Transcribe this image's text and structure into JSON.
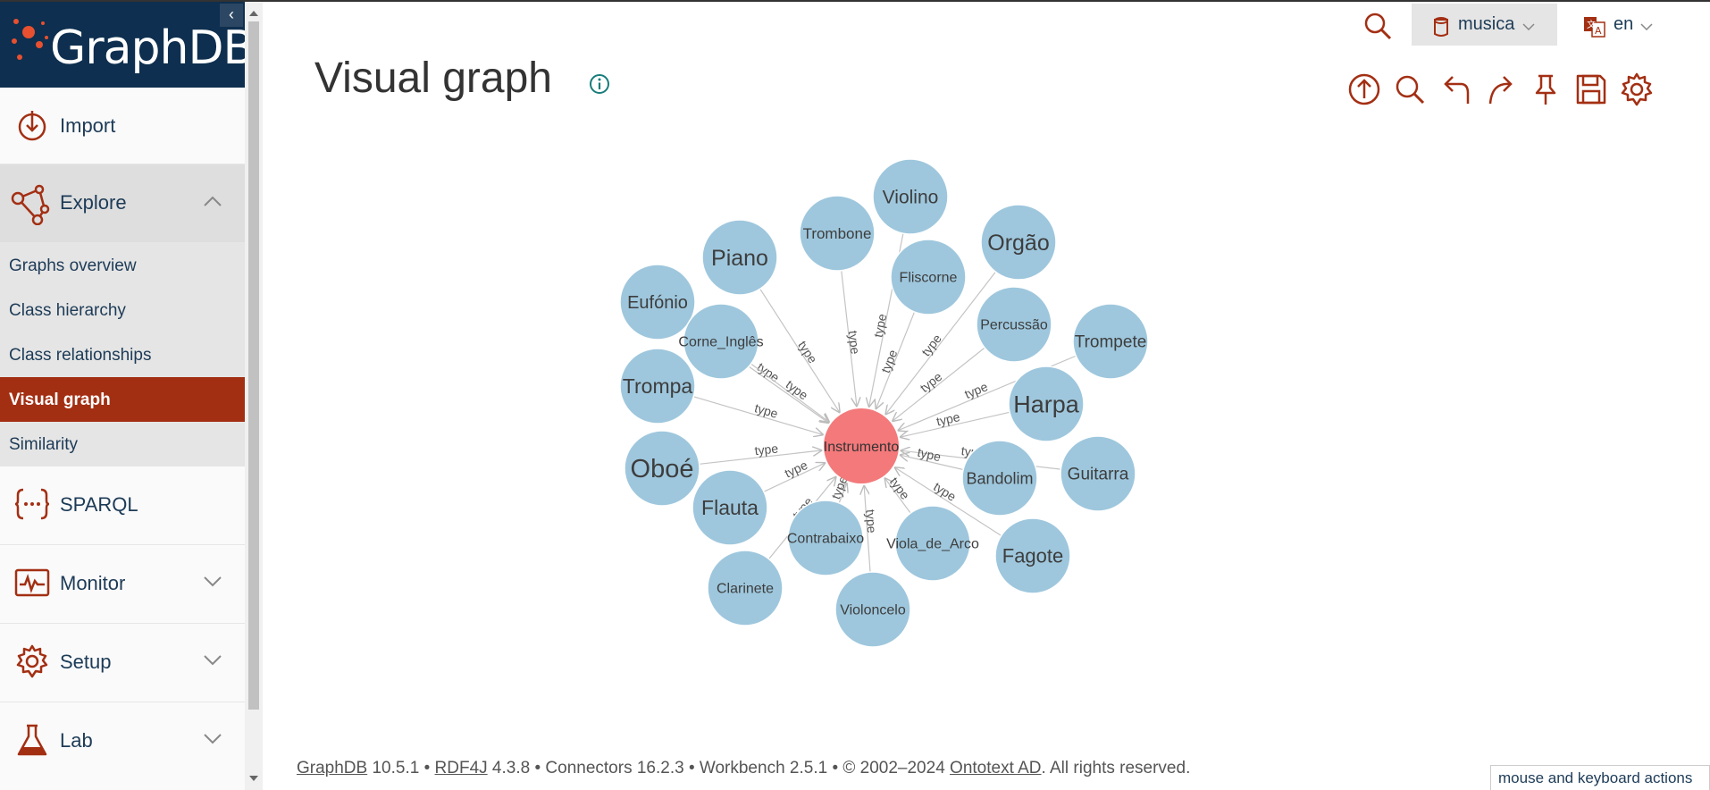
{
  "app": {
    "logo_text": "GraphDB"
  },
  "sidebar": {
    "collapse_glyph": "‹",
    "items": [
      {
        "label": "Import",
        "icon": "import-icon"
      },
      {
        "label": "Explore",
        "icon": "explore-icon",
        "expanded": true
      },
      {
        "label": "SPARQL",
        "icon": "sparql-icon"
      },
      {
        "label": "Monitor",
        "icon": "monitor-icon"
      },
      {
        "label": "Setup",
        "icon": "setup-icon"
      },
      {
        "label": "Lab",
        "icon": "lab-icon"
      }
    ],
    "explore_submenu": [
      {
        "label": "Graphs overview"
      },
      {
        "label": "Class hierarchy"
      },
      {
        "label": "Class relationships"
      },
      {
        "label": "Visual graph",
        "active": true
      },
      {
        "label": "Similarity"
      }
    ]
  },
  "topbar": {
    "repository": "musica",
    "language": "en"
  },
  "page": {
    "title": "Visual graph"
  },
  "toolbar": {
    "icons": [
      "upload-icon",
      "search-icon",
      "undo-icon",
      "redo-icon",
      "pin-icon",
      "save-icon",
      "settings-icon"
    ]
  },
  "graph": {
    "center": {
      "label": "Instrumento",
      "color": "#f4797b"
    },
    "node_color": "#9ec7dd",
    "edge_label": "type",
    "nodes": [
      "Violino",
      "Trombone",
      "Piano",
      "Orgão",
      "Fliscorne",
      "Eufónio",
      "Corne_Inglês",
      "Percussão",
      "Trompete",
      "Trompa",
      "Harpa",
      "Oboé",
      "Guitarra",
      "Bandolim",
      "Flauta",
      "Contrabaixo",
      "Viola_de_Arco",
      "Fagote",
      "Clarinete",
      "Violoncelo"
    ]
  },
  "footer": {
    "graphdb_link": "GraphDB",
    "graphdb_version": " 10.5.1 • ",
    "rdf4j_link": "RDF4J",
    "rest": " 4.3.8 • Connectors 16.2.3 • Workbench 2.5.1 • © 2002–2024 ",
    "ontotext_link": "Ontotext AD",
    "rights": ". All rights reserved."
  },
  "kb_actions": "mouse and keyboard actions",
  "colors": {
    "accent": "#a32f13",
    "navy": "#0e2f4f",
    "icon": "#a32f13"
  }
}
